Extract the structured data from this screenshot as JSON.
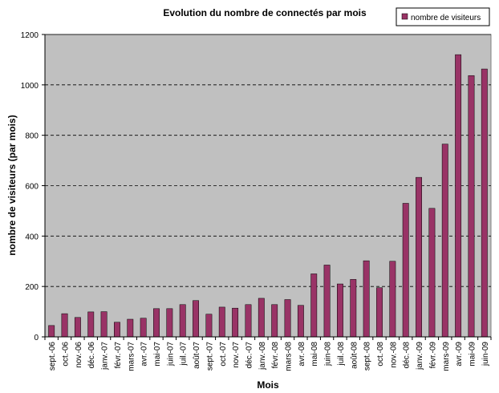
{
  "chart_data": {
    "type": "bar",
    "title": "Evolution du nombre de connectés  par mois",
    "xlabel": "Mois",
    "ylabel": "nombre de visiteurs (par mois)",
    "ylim": [
      0,
      1200
    ],
    "yticks": [
      0,
      200,
      400,
      600,
      800,
      1000,
      1200
    ],
    "grid": true,
    "legend_position": "top-right",
    "colors": {
      "bar": "#993366",
      "plot_background": "#c0c0c0",
      "gridline": "#000000"
    },
    "categories": [
      "sept.-06",
      "oct.-06",
      "nov.-06",
      "déc.-06",
      "janv.-07",
      "févr.-07",
      "mars-07",
      "avr.-07",
      "mai-07",
      "juin-07",
      "juil.-07",
      "août-07",
      "sept.-07",
      "oct.-07",
      "nov.-07",
      "déc.-07",
      "janv.-08",
      "févr.-08",
      "mars-08",
      "avr.-08",
      "mai-08",
      "juin-08",
      "juil.-08",
      "août-08",
      "sept.-08",
      "oct.-08",
      "nov.-08",
      "déc.-08",
      "janv.-09",
      "févr.-09",
      "mars-09",
      "avr.-09",
      "mai-09",
      "juin-09"
    ],
    "series": [
      {
        "name": "nombre de visiteurs",
        "values": [
          45,
          92,
          77,
          99,
          100,
          58,
          70,
          74,
          112,
          112,
          128,
          144,
          90,
          118,
          114,
          128,
          153,
          128,
          148,
          125,
          250,
          285,
          210,
          228,
          302,
          195,
          300,
          530,
          633,
          510,
          765,
          1120,
          1037,
          1063
        ]
      }
    ]
  }
}
